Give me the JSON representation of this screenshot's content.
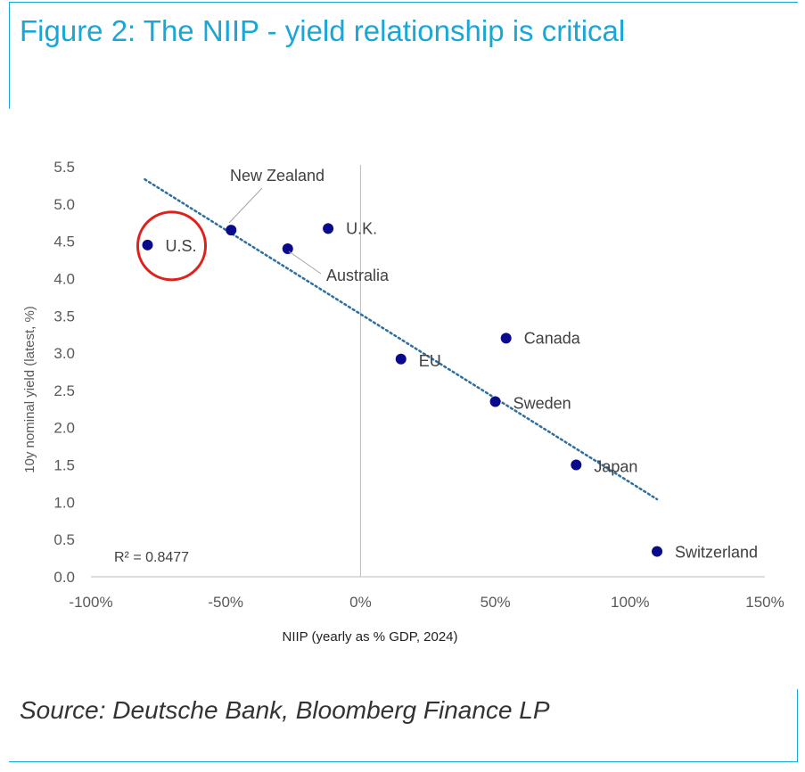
{
  "figure": {
    "title": "Figure 2: The NIIP - yield relationship is critical",
    "source": "Source: Deutsche Bank, Bloomberg Finance LP",
    "accent_color": "#1aa6d6"
  },
  "chart_data": {
    "type": "scatter",
    "title": "Figure 2: The NIIP - yield relationship is critical",
    "xlabel": "NIIP (yearly as % GDP, 2024)",
    "ylabel": "10y nominal yield (latest, %)",
    "xlim": [
      -100,
      150
    ],
    "ylim": [
      0,
      5.5
    ],
    "x_ticks": [
      -100,
      -50,
      0,
      50,
      100,
      150
    ],
    "x_tick_labels": [
      "-100%",
      "-50%",
      "0%",
      "50%",
      "100%",
      "150%"
    ],
    "y_ticks": [
      0.0,
      0.5,
      1.0,
      1.5,
      2.0,
      2.5,
      3.0,
      3.5,
      4.0,
      4.5,
      5.0,
      5.5
    ],
    "y_tick_labels": [
      "0.0",
      "0.5",
      "1.0",
      "1.5",
      "2.0",
      "2.5",
      "3.0",
      "3.5",
      "4.0",
      "4.5",
      "5.0",
      "5.5"
    ],
    "grid": false,
    "point_color": "#0a0a8c",
    "trend_color": "#2f6f9f",
    "highlight_color": "#e0201a",
    "highlight_label": "U.S.",
    "points": [
      {
        "label": "U.S.",
        "x": -79,
        "y": 4.45
      },
      {
        "label": "New Zealand",
        "x": -48,
        "y": 4.65
      },
      {
        "label": "Australia",
        "x": -27,
        "y": 4.4
      },
      {
        "label": "U.K.",
        "x": -12,
        "y": 4.67
      },
      {
        "label": "EU",
        "x": 15,
        "y": 2.92
      },
      {
        "label": "Canada",
        "x": 54,
        "y": 3.2
      },
      {
        "label": "Sweden",
        "x": 50,
        "y": 2.35
      },
      {
        "label": "Japan",
        "x": 80,
        "y": 1.5
      },
      {
        "label": "Switzerland",
        "x": 110,
        "y": 0.34
      }
    ],
    "trendline": {
      "x": [
        -80,
        110
      ],
      "y": [
        5.33,
        1.04
      ],
      "style": "dotted"
    },
    "annotation": "R² = 0.8477"
  }
}
